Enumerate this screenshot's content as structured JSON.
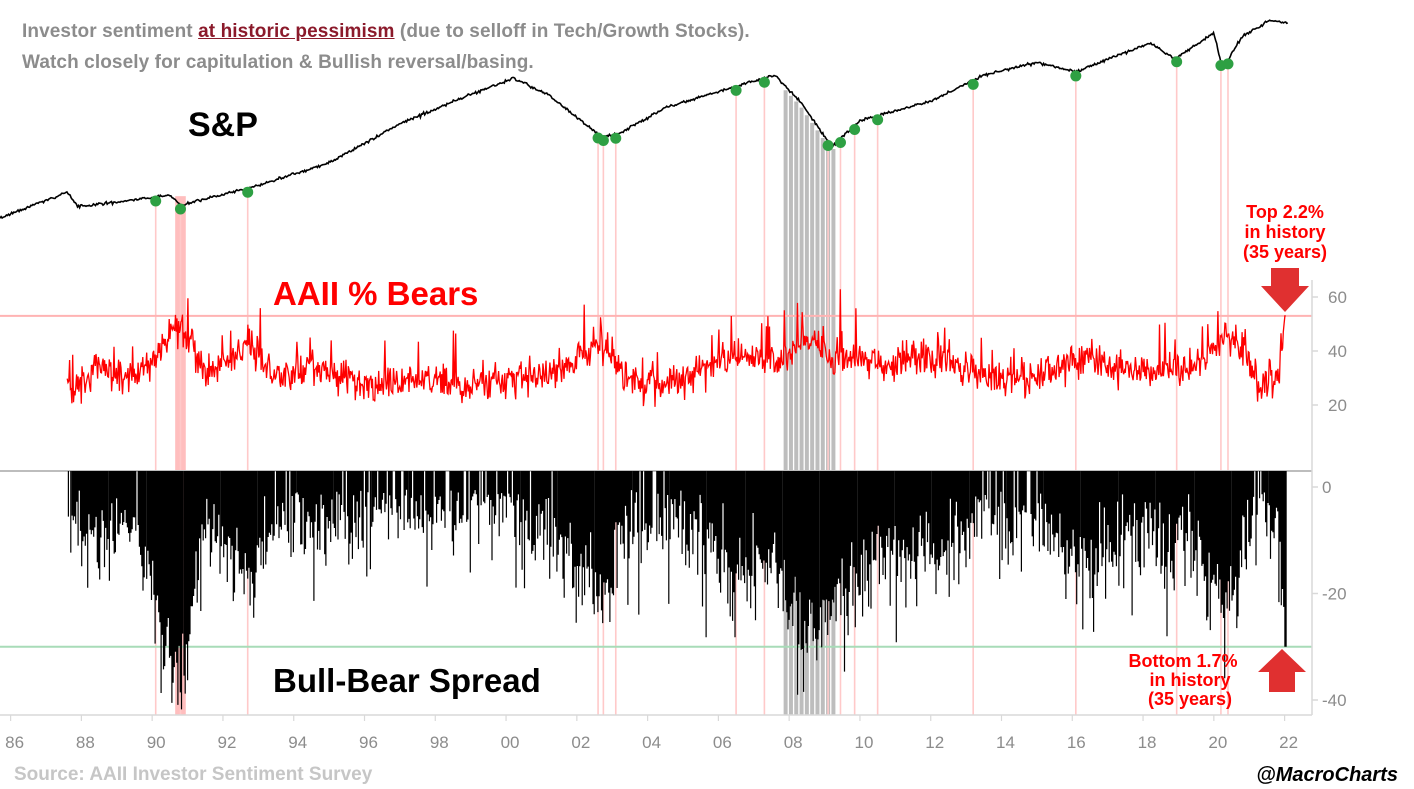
{
  "headline": {
    "line1_a": "Investor sentiment ",
    "line1_highlight": "at historic pessimism",
    "line1_b": " (due to selloff in Tech/Growth Stocks).",
    "line2": "Watch closely for capitulation & Bullish reversal/basing."
  },
  "source": "Source: AAII Investor Sentiment Survey",
  "credit": "@MacroCharts",
  "colors": {
    "sp": "#000000",
    "bears": "#ff0000",
    "spread": "#000000",
    "dot": "#2ea043",
    "marker": "#ffc9c9",
    "band": "#ffb3b3",
    "gray": "#bdbdbd",
    "arrow": "#e03030",
    "green_line": "#a8dcb8",
    "red_line": "#ffb3b3"
  },
  "chart_data": {
    "type": "line",
    "x_ticks": [
      "86",
      "88",
      "90",
      "92",
      "94",
      "96",
      "98",
      "00",
      "02",
      "04",
      "06",
      "08",
      "10",
      "12",
      "14",
      "16",
      "18",
      "20",
      "22"
    ],
    "x_range": [
      1985.7,
      2023.0
    ],
    "panels": [
      {
        "name": "S&P",
        "label": "S&P",
        "y_axis": "hidden",
        "trend": [
          [
            1985.7,
            0.0
          ],
          [
            1987.6,
            0.16
          ],
          [
            1987.9,
            0.07
          ],
          [
            1990.5,
            0.14
          ],
          [
            1990.8,
            0.08
          ],
          [
            1993.0,
            0.2
          ],
          [
            1995.0,
            0.34
          ],
          [
            1997.0,
            0.58
          ],
          [
            1999.0,
            0.76
          ],
          [
            2000.2,
            0.86
          ],
          [
            2001.2,
            0.76
          ],
          [
            2002.7,
            0.5
          ],
          [
            2003.2,
            0.52
          ],
          [
            2004.5,
            0.68
          ],
          [
            2006.0,
            0.78
          ],
          [
            2007.6,
            0.88
          ],
          [
            2008.3,
            0.72
          ],
          [
            2009.2,
            0.44
          ],
          [
            2010.0,
            0.6
          ],
          [
            2011.0,
            0.66
          ],
          [
            2012.0,
            0.72
          ],
          [
            2013.5,
            0.88
          ],
          [
            2015.0,
            0.96
          ],
          [
            2016.1,
            0.9
          ],
          [
            2017.5,
            1.02
          ],
          [
            2018.2,
            1.08
          ],
          [
            2018.9,
            0.98
          ],
          [
            2020.0,
            1.14
          ],
          [
            2020.25,
            0.92
          ],
          [
            2020.8,
            1.12
          ],
          [
            2021.6,
            1.22
          ],
          [
            2022.1,
            1.2
          ]
        ]
      },
      {
        "name": "AAII % Bears",
        "label": "AAII % Bears",
        "y_ticks": [
          20,
          40,
          60
        ],
        "y_range": [
          8,
          68
        ],
        "threshold": 53,
        "last_value": 53,
        "anchors": [
          [
            1987.6,
            24
          ],
          [
            1988.5,
            34
          ],
          [
            1989.5,
            30
          ],
          [
            1990.8,
            50
          ],
          [
            1991.5,
            32
          ],
          [
            1992.7,
            42
          ],
          [
            1993.5,
            30
          ],
          [
            1994.5,
            34
          ],
          [
            1996.0,
            27
          ],
          [
            1997.5,
            30
          ],
          [
            1999.0,
            27
          ],
          [
            2000.5,
            30
          ],
          [
            2001.5,
            34
          ],
          [
            2002.7,
            43
          ],
          [
            2003.5,
            30
          ],
          [
            2004.5,
            28
          ],
          [
            2005.5,
            33
          ],
          [
            2006.5,
            38
          ],
          [
            2007.5,
            36
          ],
          [
            2008.5,
            44
          ],
          [
            2009.2,
            40
          ],
          [
            2010.5,
            35
          ],
          [
            2011.5,
            37
          ],
          [
            2012.5,
            36
          ],
          [
            2013.5,
            30
          ],
          [
            2014.5,
            30
          ],
          [
            2015.5,
            32
          ],
          [
            2016.2,
            38
          ],
          [
            2017.5,
            32
          ],
          [
            2018.5,
            33
          ],
          [
            2019.5,
            33
          ],
          [
            2020.3,
            46
          ],
          [
            2020.8,
            40
          ],
          [
            2021.3,
            27
          ],
          [
            2021.8,
            31
          ],
          [
            2022.05,
            53
          ]
        ],
        "annotation": {
          "line1": "Top 2.2%",
          "line2": "in history",
          "line3": "(35 years)"
        }
      },
      {
        "name": "Bull-Bear Spread",
        "label": "Bull-Bear Spread",
        "y_ticks": [
          0,
          -20,
          -40
        ],
        "y_range": [
          -43,
          3
        ],
        "threshold": -30,
        "last_value": -30,
        "anchors": [
          [
            1987.6,
            -4
          ],
          [
            1988.5,
            -10
          ],
          [
            1989.5,
            -8
          ],
          [
            1990.8,
            -38
          ],
          [
            1991.5,
            -6
          ],
          [
            1992.7,
            -18
          ],
          [
            1993.5,
            -4
          ],
          [
            1994.5,
            -8
          ],
          [
            1996.0,
            -3
          ],
          [
            1997.5,
            -4
          ],
          [
            1999.0,
            -2
          ],
          [
            2000.5,
            -6
          ],
          [
            2001.5,
            -10
          ],
          [
            2002.7,
            -22
          ],
          [
            2003.5,
            -6
          ],
          [
            2004.5,
            -4
          ],
          [
            2005.5,
            -8
          ],
          [
            2006.5,
            -18
          ],
          [
            2007.5,
            -14
          ],
          [
            2008.5,
            -28
          ],
          [
            2009.2,
            -24
          ],
          [
            2010.5,
            -12
          ],
          [
            2011.5,
            -14
          ],
          [
            2012.5,
            -12
          ],
          [
            2013.5,
            -4
          ],
          [
            2014.5,
            -4
          ],
          [
            2015.5,
            -8
          ],
          [
            2016.2,
            -18
          ],
          [
            2017.5,
            -8
          ],
          [
            2018.5,
            -10
          ],
          [
            2019.5,
            -12
          ],
          [
            2020.3,
            -24
          ],
          [
            2020.8,
            -16
          ],
          [
            2021.3,
            -1
          ],
          [
            2021.8,
            -8
          ],
          [
            2022.05,
            -30
          ]
        ],
        "annotation": {
          "line1": "Bottom 1.7%",
          "line2": "in history",
          "line3": "(35 years)"
        }
      }
    ],
    "signal_dates": [
      1990.1,
      1990.8,
      1992.7,
      2002.6,
      2002.75,
      2003.1,
      2006.5,
      2007.3,
      2009.1,
      2009.45,
      2009.85,
      2010.5,
      2013.2,
      2016.1,
      2018.95,
      2020.2,
      2020.4
    ],
    "extreme_band": [
      1990.65,
      1990.95
    ],
    "gray_dates": [
      2007.9,
      2008.05,
      2008.2,
      2008.35,
      2008.5,
      2008.65,
      2008.8,
      2008.95,
      2009.1,
      2009.25
    ]
  }
}
